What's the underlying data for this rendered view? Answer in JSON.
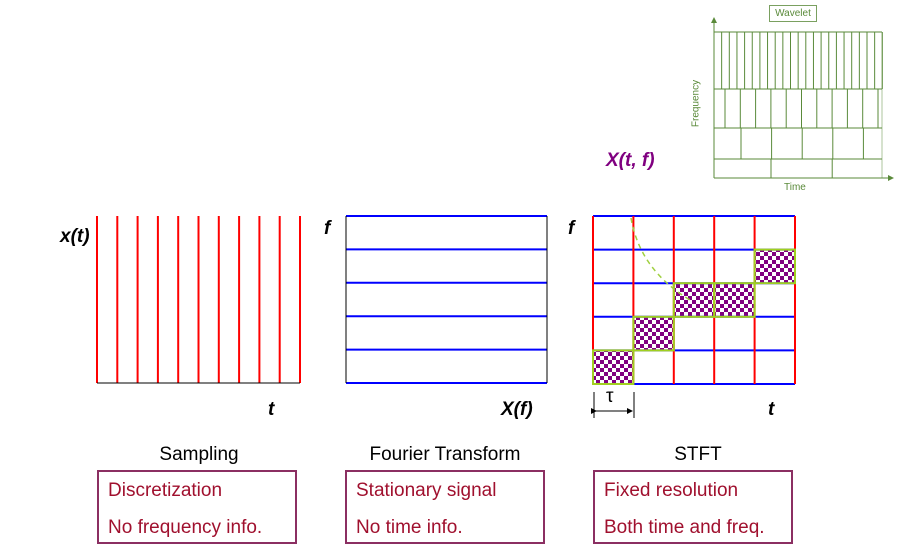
{
  "wavelet": {
    "title": "Wavelet",
    "ylabel": "Frequency",
    "xlabel": "Time"
  },
  "stft_annotation": "X(t, f)",
  "tau": "τ",
  "panels": [
    {
      "ylabel": "x(t)",
      "xlabel": "t",
      "caption": "Sampling",
      "lines": [
        "Discretization",
        "No frequency info."
      ]
    },
    {
      "ylabel": "f",
      "xlabel": "X(f)",
      "caption": "Fourier Transform",
      "lines": [
        "Stationary signal",
        "No time info."
      ]
    },
    {
      "ylabel": "f",
      "xlabel": "t",
      "caption": "STFT",
      "lines": [
        "Fixed resolution",
        "Both time and freq."
      ]
    }
  ],
  "colors": {
    "time_lines": "#ff0000",
    "freq_lines": "#0000ff",
    "highlight": "#800080",
    "wavelet": "#5a8a3a",
    "box_border": "#8b2f62",
    "box_text": "#a0102e"
  }
}
